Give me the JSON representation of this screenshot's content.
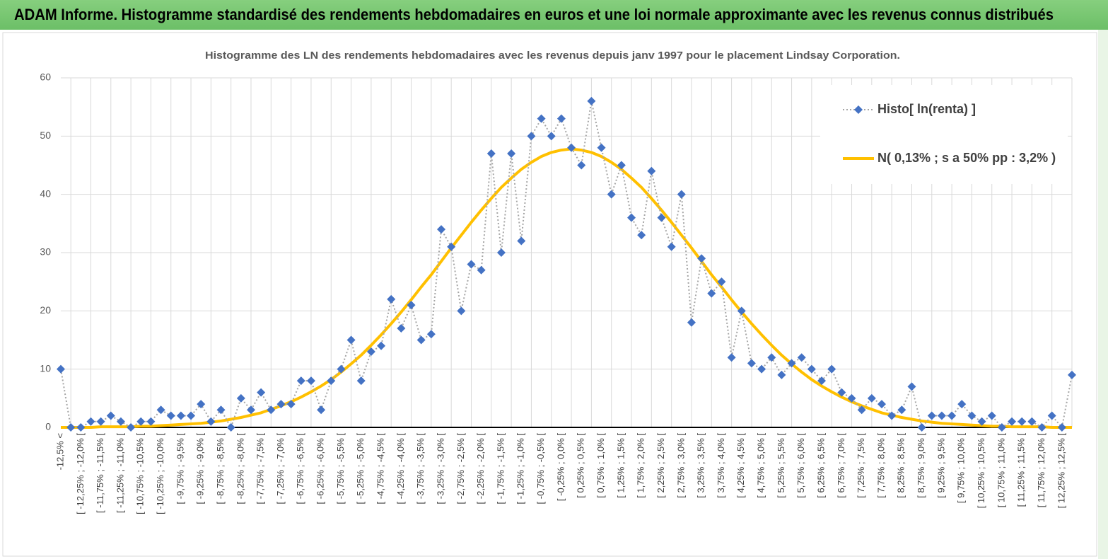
{
  "chart_data": {
    "type": "line",
    "header": "ADAM Informe. Histogramme standardisé des rendements hebdomadaires en euros et une loi normale approximante avec les revenus connus distribués",
    "title": "Histogramme des LN des rendements hebdomadaires avec les revenus depuis janv 1997 pour le placement Lindsay Corporation.",
    "categories": [
      "-12,5% <",
      null,
      "[ -12,25% ; -12,0% [",
      null,
      "[ -11,75% ; -11,5% [",
      null,
      "[ -11,25% ; -11,0% [",
      null,
      "[ -10,75% ; -10,5% [",
      null,
      "[ -10,25% ; -10,0% [",
      null,
      "[ -9,75% ; -9,5% [",
      null,
      "[ -9,25% ; -9,0% [",
      null,
      "[ -8,75% ; -8,5% [",
      null,
      "[ -8,25% ; -8,0% [",
      null,
      "[ -7,75% ; -7,5% [",
      null,
      "[ -7,25% ; -7,0% [",
      null,
      "[ -6,75% ; -6,5% [",
      null,
      "[ -6,25% ; -6,0% [",
      null,
      "[ -5,75% ; -5,5% [",
      null,
      "[ -5,25% ; -5,0% [",
      null,
      "[ -4,75% ; -4,5% [",
      null,
      "[ -4,25% ; -4,0% [",
      null,
      "[ -3,75% ; -3,5% [",
      null,
      "[ -3,25% ; -3,0% [",
      null,
      "[ -2,75% ; -2,5% [",
      null,
      "[ -2,25% ; -2,0% [",
      null,
      "[ -1,75% ; -1,5% [",
      null,
      "[ -1,25% ; -1,0% [",
      null,
      "[ -0,75% ; -0,5% [",
      null,
      "[ -0,25% ; 0,0% [",
      null,
      "[ 0,25% ; 0,5% [",
      null,
      "[ 0,75% ; 1,0% [",
      null,
      "[ 1,25% ; 1,5% [",
      null,
      "[ 1,75% ; 2,0% [",
      null,
      "[ 2,25% ; 2,5% [",
      null,
      "[ 2,75% ; 3,0% [",
      null,
      "[ 3,25% ; 3,5% [",
      null,
      "[ 3,75% ; 4,0% [",
      null,
      "[ 4,25% ; 4,5% [",
      null,
      "[ 4,75% ; 5,0% [",
      null,
      "[ 5,25% ; 5,5% [",
      null,
      "[ 5,75% ; 6,0% [",
      null,
      "[ 6,25% ; 6,5% [",
      null,
      "[ 6,75% ; 7,0% [",
      null,
      "[ 7,25% ; 7,5% [",
      null,
      "[ 7,75% ; 8,0% [",
      null,
      "[ 8,25% ; 8,5% [",
      null,
      "[ 8,75% ; 9,0% [",
      null,
      "[ 9,25% ; 9,5% [",
      null,
      "[ 9,75% ; 10,0% [",
      null,
      "[ 10,25% ; 10,5% [",
      null,
      "[ 10,75% ; 11,0% [",
      null,
      "[ 11,25% ; 11,5% [",
      null,
      "[ 11,75% ; 12,0% [",
      null,
      "[ 12,25% ; 12,5% [",
      null
    ],
    "series": [
      {
        "name": "Histo[ ln(renta) ]",
        "color": "#4472c4",
        "line_color": "#a5a5a5",
        "dash": "dotted",
        "marker": "diamond",
        "values": [
          10,
          0,
          0,
          1,
          1,
          2,
          1,
          0,
          1,
          1,
          3,
          2,
          2,
          2,
          4,
          1,
          3,
          0,
          5,
          3,
          6,
          3,
          4,
          4,
          8,
          8,
          3,
          8,
          10,
          15,
          8,
          13,
          14,
          22,
          17,
          21,
          15,
          16,
          34,
          31,
          20,
          28,
          27,
          47,
          30,
          47,
          32,
          50,
          53,
          50,
          53,
          48,
          45,
          56,
          48,
          40,
          45,
          36,
          33,
          44,
          36,
          31,
          40,
          18,
          29,
          23,
          25,
          12,
          20,
          11,
          10,
          12,
          9,
          11,
          12,
          10,
          8,
          10,
          6,
          5,
          3,
          5,
          4,
          2,
          3,
          7,
          0,
          2,
          2,
          2,
          4,
          2,
          1,
          2,
          0,
          1,
          1,
          1,
          0,
          2,
          0,
          9
        ]
      },
      {
        "name": "N( 0,13% ; s a 50% pp : 3,2% )",
        "color": "#ffc000",
        "dash": "solid",
        "marker": "none",
        "values": [
          0,
          0,
          0,
          0,
          0.1,
          0.1,
          0.1,
          0.1,
          0.2,
          0.2,
          0.3,
          0.4,
          0.5,
          0.6,
          0.7,
          0.9,
          1.1,
          1.4,
          1.7,
          2.1,
          2.5,
          3.1,
          3.7,
          4.4,
          5.2,
          6.1,
          7.1,
          8.2,
          9.5,
          10.9,
          12.4,
          14.1,
          15.9,
          17.8,
          19.8,
          21.9,
          24.1,
          26.2,
          28.5,
          30.8,
          33.0,
          35.2,
          37.3,
          39.3,
          41.2,
          42.8,
          44.3,
          45.5,
          46.5,
          47.2,
          47.6,
          47.8,
          47.6,
          47.2,
          46.5,
          45.5,
          44.3,
          42.8,
          41.2,
          39.3,
          37.3,
          35.2,
          33.0,
          30.8,
          28.5,
          26.2,
          24.1,
          21.9,
          19.8,
          17.8,
          15.9,
          14.1,
          12.4,
          10.9,
          9.5,
          8.2,
          7.1,
          6.1,
          5.2,
          4.4,
          3.7,
          3.1,
          2.5,
          2.1,
          1.7,
          1.4,
          1.1,
          0.9,
          0.7,
          0.6,
          0.5,
          0.4,
          0.3,
          0.2,
          0.2,
          0.1,
          0.1,
          0.1,
          0.1,
          0,
          0,
          0
        ]
      }
    ],
    "ylim": [
      0,
      60
    ],
    "yticks": [
      0,
      10,
      20,
      30,
      40,
      50,
      60
    ],
    "grid": true,
    "legend": "upper right"
  }
}
